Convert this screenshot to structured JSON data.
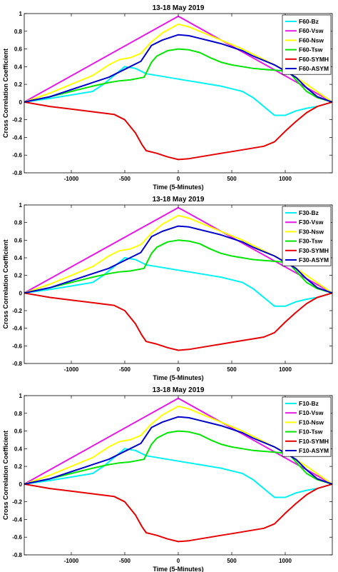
{
  "chart_data": [
    {
      "type": "line",
      "title": "13-18 May 2019",
      "xlabel": "Time (5-Minutes)",
      "ylabel": "Cross Correlation Coefficient",
      "xlim": [
        -1440,
        1440
      ],
      "ylim": [
        -0.8,
        1.0
      ],
      "xticks": [
        -1000,
        -500,
        0,
        500,
        1000
      ],
      "yticks": [
        -0.8,
        -0.6,
        -0.4,
        -0.2,
        0,
        0.2,
        0.4,
        0.6,
        0.8,
        1
      ],
      "legend_position": "top-right",
      "series": [
        {
          "name": "F60-Bz",
          "color": "#00f2f2",
          "x": [
            -1440,
            -1200,
            -1000,
            -900,
            -800,
            -700,
            -600,
            -500,
            -400,
            -300,
            -200,
            -100,
            0,
            100,
            200,
            300,
            400,
            500,
            600,
            700,
            800,
            900,
            1000,
            1100,
            1200,
            1300,
            1440
          ],
          "y": [
            0,
            0.04,
            0.08,
            0.1,
            0.12,
            0.2,
            0.3,
            0.4,
            0.38,
            0.32,
            0.3,
            0.28,
            0.26,
            0.24,
            0.22,
            0.2,
            0.18,
            0.15,
            0.12,
            0.05,
            -0.05,
            -0.15,
            -0.15,
            -0.1,
            -0.07,
            -0.05,
            0
          ]
        },
        {
          "name": "F60-Vsw",
          "color": "#e619e6",
          "x": [
            -1440,
            0,
            1440
          ],
          "y": [
            0,
            0.97,
            0
          ]
        },
        {
          "name": "F60-Nsw",
          "color": "#ffff00",
          "x": [
            -1440,
            -1200,
            -1000,
            -800,
            -650,
            -550,
            -450,
            -350,
            -250,
            -150,
            0,
            100,
            200,
            400,
            600,
            800,
            1000,
            1200,
            1440
          ],
          "y": [
            0,
            0.1,
            0.2,
            0.3,
            0.42,
            0.48,
            0.5,
            0.55,
            0.68,
            0.78,
            0.88,
            0.85,
            0.8,
            0.7,
            0.6,
            0.48,
            0.36,
            0.2,
            0
          ]
        },
        {
          "name": "F60-Tsw",
          "color": "#00e600",
          "x": [
            -1440,
            -1200,
            -1000,
            -800,
            -650,
            -550,
            -450,
            -320,
            -250,
            -200,
            -100,
            0,
            100,
            200,
            300,
            400,
            500,
            600,
            700,
            800,
            900,
            1000,
            1050,
            1100,
            1200,
            1300,
            1440
          ],
          "y": [
            0,
            0.06,
            0.12,
            0.18,
            0.22,
            0.24,
            0.25,
            0.28,
            0.45,
            0.52,
            0.58,
            0.6,
            0.59,
            0.56,
            0.5,
            0.45,
            0.42,
            0.4,
            0.38,
            0.37,
            0.36,
            0.35,
            0.32,
            0.25,
            0.12,
            0.05,
            0
          ]
        },
        {
          "name": "F60-SYMH",
          "color": "#e60000",
          "x": [
            -1440,
            -1200,
            -1000,
            -800,
            -600,
            -500,
            -400,
            -340,
            -300,
            -200,
            -100,
            0,
            100,
            200,
            300,
            400,
            500,
            600,
            700,
            800,
            900,
            1000,
            1100,
            1200,
            1300,
            1440
          ],
          "y": [
            0,
            -0.05,
            -0.08,
            -0.11,
            -0.14,
            -0.2,
            -0.35,
            -0.48,
            -0.55,
            -0.58,
            -0.62,
            -0.65,
            -0.64,
            -0.62,
            -0.6,
            -0.58,
            -0.56,
            -0.54,
            -0.52,
            -0.5,
            -0.45,
            -0.33,
            -0.22,
            -0.12,
            -0.05,
            0
          ]
        },
        {
          "name": "F60-ASYM",
          "color": "#0000cc",
          "x": [
            -1440,
            -1200,
            -1000,
            -800,
            -650,
            -550,
            -450,
            -350,
            -300,
            -250,
            -150,
            0,
            100,
            200,
            300,
            400,
            500,
            600,
            700,
            800,
            900,
            1000,
            1100,
            1200,
            1300,
            1440
          ],
          "y": [
            0,
            0.06,
            0.14,
            0.22,
            0.28,
            0.34,
            0.4,
            0.46,
            0.55,
            0.64,
            0.7,
            0.76,
            0.75,
            0.72,
            0.69,
            0.66,
            0.62,
            0.58,
            0.52,
            0.47,
            0.42,
            0.35,
            0.28,
            0.16,
            0.06,
            0
          ]
        }
      ]
    },
    {
      "type": "line",
      "title": "13-18 May 2019",
      "xlabel": "Time (5-Minutes)",
      "ylabel": "Cross Correlation Coefficient",
      "xlim": [
        -1440,
        1440
      ],
      "ylim": [
        -0.8,
        1.0
      ],
      "xticks": [
        -1000,
        -500,
        0,
        500,
        1000
      ],
      "yticks": [
        -0.8,
        -0.6,
        -0.4,
        -0.2,
        0,
        0.2,
        0.4,
        0.6,
        0.8,
        1
      ],
      "legend_position": "top-right",
      "series": [
        {
          "name": "F30-Bz",
          "color": "#00f2f2",
          "x": [
            -1440,
            -1200,
            -1000,
            -900,
            -800,
            -700,
            -600,
            -500,
            -400,
            -300,
            -200,
            -100,
            0,
            100,
            200,
            300,
            400,
            500,
            600,
            700,
            800,
            900,
            1000,
            1100,
            1200,
            1300,
            1440
          ],
          "y": [
            0,
            0.04,
            0.08,
            0.1,
            0.12,
            0.2,
            0.3,
            0.4,
            0.38,
            0.32,
            0.3,
            0.28,
            0.26,
            0.24,
            0.22,
            0.2,
            0.18,
            0.15,
            0.12,
            0.05,
            -0.05,
            -0.15,
            -0.15,
            -0.1,
            -0.07,
            -0.05,
            0
          ]
        },
        {
          "name": "F30-Vsw",
          "color": "#e619e6",
          "x": [
            -1440,
            0,
            1440
          ],
          "y": [
            0,
            0.97,
            0
          ]
        },
        {
          "name": "F30-Nsw",
          "color": "#ffff00",
          "x": [
            -1440,
            -1200,
            -1000,
            -800,
            -650,
            -550,
            -450,
            -350,
            -250,
            -150,
            0,
            100,
            200,
            400,
            600,
            800,
            1000,
            1200,
            1440
          ],
          "y": [
            0,
            0.1,
            0.2,
            0.3,
            0.42,
            0.48,
            0.5,
            0.55,
            0.68,
            0.78,
            0.88,
            0.85,
            0.8,
            0.7,
            0.6,
            0.48,
            0.36,
            0.2,
            0
          ]
        },
        {
          "name": "F30-Tsw",
          "color": "#00e600",
          "x": [
            -1440,
            -1200,
            -1000,
            -800,
            -650,
            -550,
            -450,
            -320,
            -250,
            -200,
            -100,
            0,
            100,
            200,
            300,
            400,
            500,
            600,
            700,
            800,
            900,
            1000,
            1050,
            1100,
            1200,
            1300,
            1440
          ],
          "y": [
            0,
            0.06,
            0.12,
            0.18,
            0.22,
            0.24,
            0.25,
            0.28,
            0.45,
            0.52,
            0.58,
            0.6,
            0.59,
            0.56,
            0.5,
            0.45,
            0.42,
            0.4,
            0.38,
            0.37,
            0.36,
            0.35,
            0.32,
            0.25,
            0.12,
            0.05,
            0
          ]
        },
        {
          "name": "F30-SYMH",
          "color": "#e60000",
          "x": [
            -1440,
            -1200,
            -1000,
            -800,
            -600,
            -500,
            -400,
            -340,
            -300,
            -200,
            -100,
            0,
            100,
            200,
            300,
            400,
            500,
            600,
            700,
            800,
            900,
            1000,
            1100,
            1200,
            1300,
            1440
          ],
          "y": [
            0,
            -0.05,
            -0.08,
            -0.11,
            -0.14,
            -0.2,
            -0.35,
            -0.48,
            -0.55,
            -0.58,
            -0.62,
            -0.65,
            -0.64,
            -0.62,
            -0.6,
            -0.58,
            -0.56,
            -0.54,
            -0.52,
            -0.5,
            -0.45,
            -0.33,
            -0.22,
            -0.12,
            -0.05,
            0
          ]
        },
        {
          "name": "F30-ASYM",
          "color": "#0000cc",
          "x": [
            -1440,
            -1200,
            -1000,
            -800,
            -650,
            -550,
            -450,
            -350,
            -300,
            -250,
            -150,
            0,
            100,
            200,
            300,
            400,
            500,
            600,
            700,
            800,
            900,
            1000,
            1100,
            1200,
            1300,
            1440
          ],
          "y": [
            0,
            0.06,
            0.14,
            0.22,
            0.28,
            0.34,
            0.4,
            0.46,
            0.55,
            0.64,
            0.7,
            0.76,
            0.75,
            0.72,
            0.69,
            0.66,
            0.62,
            0.58,
            0.52,
            0.47,
            0.42,
            0.35,
            0.28,
            0.16,
            0.06,
            0
          ]
        }
      ]
    },
    {
      "type": "line",
      "title": "13-18 May 2019",
      "xlabel": "Time (5-Minutes)",
      "ylabel": "Cross Correlation Coefficient",
      "xlim": [
        -1440,
        1440
      ],
      "ylim": [
        -0.8,
        1.0
      ],
      "xticks": [
        -1000,
        -500,
        0,
        500,
        1000
      ],
      "yticks": [
        -0.8,
        -0.6,
        -0.4,
        -0.2,
        0,
        0.2,
        0.4,
        0.6,
        0.8,
        1
      ],
      "legend_position": "top-right",
      "series": [
        {
          "name": "F10-Bz",
          "color": "#00f2f2",
          "x": [
            -1440,
            -1200,
            -1000,
            -900,
            -800,
            -700,
            -600,
            -500,
            -400,
            -300,
            -200,
            -100,
            0,
            100,
            200,
            300,
            400,
            500,
            600,
            700,
            800,
            900,
            1000,
            1100,
            1200,
            1300,
            1440
          ],
          "y": [
            0,
            0.04,
            0.08,
            0.1,
            0.12,
            0.2,
            0.3,
            0.4,
            0.38,
            0.32,
            0.3,
            0.28,
            0.26,
            0.24,
            0.22,
            0.2,
            0.18,
            0.15,
            0.12,
            0.05,
            -0.05,
            -0.15,
            -0.15,
            -0.1,
            -0.07,
            -0.05,
            0
          ]
        },
        {
          "name": "F10-Vsw",
          "color": "#e619e6",
          "x": [
            -1440,
            0,
            1440
          ],
          "y": [
            0,
            0.97,
            0
          ]
        },
        {
          "name": "F10-Nsw",
          "color": "#ffff00",
          "x": [
            -1440,
            -1200,
            -1000,
            -800,
            -650,
            -550,
            -450,
            -350,
            -250,
            -150,
            0,
            100,
            200,
            400,
            600,
            800,
            1000,
            1200,
            1440
          ],
          "y": [
            0,
            0.1,
            0.2,
            0.3,
            0.42,
            0.48,
            0.5,
            0.55,
            0.68,
            0.78,
            0.88,
            0.85,
            0.8,
            0.7,
            0.6,
            0.48,
            0.36,
            0.2,
            0
          ]
        },
        {
          "name": "F10-Tsw",
          "color": "#00e600",
          "x": [
            -1440,
            -1200,
            -1000,
            -800,
            -650,
            -550,
            -450,
            -320,
            -250,
            -200,
            -100,
            0,
            100,
            200,
            300,
            400,
            500,
            600,
            700,
            800,
            900,
            1000,
            1050,
            1100,
            1200,
            1300,
            1440
          ],
          "y": [
            0,
            0.06,
            0.12,
            0.18,
            0.22,
            0.24,
            0.25,
            0.28,
            0.45,
            0.52,
            0.58,
            0.6,
            0.59,
            0.56,
            0.5,
            0.45,
            0.42,
            0.4,
            0.38,
            0.37,
            0.36,
            0.35,
            0.32,
            0.25,
            0.12,
            0.05,
            0
          ]
        },
        {
          "name": "F10-SYMH",
          "color": "#e60000",
          "x": [
            -1440,
            -1200,
            -1000,
            -800,
            -600,
            -500,
            -400,
            -340,
            -300,
            -200,
            -100,
            0,
            100,
            200,
            300,
            400,
            500,
            600,
            700,
            800,
            900,
            1000,
            1100,
            1200,
            1300,
            1440
          ],
          "y": [
            0,
            -0.05,
            -0.08,
            -0.11,
            -0.14,
            -0.2,
            -0.35,
            -0.48,
            -0.55,
            -0.58,
            -0.62,
            -0.65,
            -0.64,
            -0.62,
            -0.6,
            -0.58,
            -0.56,
            -0.54,
            -0.52,
            -0.5,
            -0.45,
            -0.33,
            -0.22,
            -0.12,
            -0.05,
            0
          ]
        },
        {
          "name": "F10-ASYM",
          "color": "#0000cc",
          "x": [
            -1440,
            -1200,
            -1000,
            -800,
            -650,
            -550,
            -450,
            -350,
            -300,
            -250,
            -150,
            0,
            100,
            200,
            300,
            400,
            500,
            600,
            700,
            800,
            900,
            1000,
            1100,
            1200,
            1300,
            1440
          ],
          "y": [
            0,
            0.06,
            0.14,
            0.22,
            0.28,
            0.34,
            0.4,
            0.46,
            0.55,
            0.64,
            0.7,
            0.76,
            0.75,
            0.72,
            0.69,
            0.66,
            0.62,
            0.58,
            0.52,
            0.47,
            0.42,
            0.35,
            0.28,
            0.16,
            0.06,
            0
          ]
        }
      ]
    }
  ]
}
